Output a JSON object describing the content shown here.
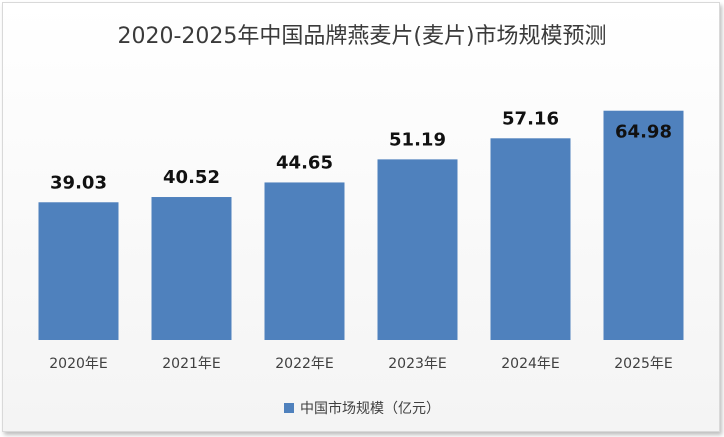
{
  "chart_data": {
    "type": "bar",
    "title": "2020-2025年中国品牌燕麦片(麦片)市场规模预测",
    "categories": [
      "2020年E",
      "2021年E",
      "2022年E",
      "2023年E",
      "2024年E",
      "2025年E"
    ],
    "series": [
      {
        "name": "中国市场规模（亿元）",
        "values": [
          39.03,
          40.52,
          44.65,
          51.19,
          57.16,
          64.98
        ],
        "color": "#4f81bd"
      }
    ],
    "xlabel": "",
    "ylabel": "",
    "ylim": [
      0,
      70
    ],
    "grid": false,
    "legend": "bottom"
  }
}
